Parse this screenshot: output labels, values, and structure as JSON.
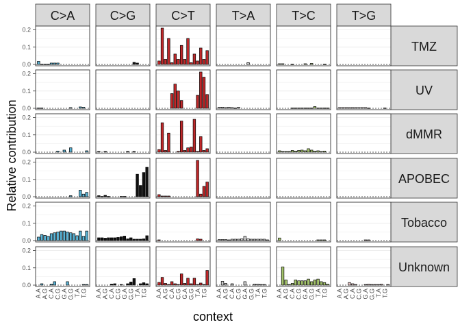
{
  "chart_data": {
    "type": "bar",
    "xlabel": "context",
    "ylabel": "Relative contribution",
    "ylim": [
      0,
      0.21
    ],
    "yticks": [
      "0.0",
      "0.1",
      "0.2"
    ],
    "grid": true,
    "mutation_types": [
      "C>A",
      "C>G",
      "C>T",
      "T>A",
      "T>C",
      "T>G"
    ],
    "signatures": [
      "TMZ",
      "UV",
      "dMMR",
      "APOBEC",
      "Tobacco",
      "Unknown"
    ],
    "context_labels": [
      "A.A",
      "A.G",
      "C.A",
      "C.G",
      "G.A",
      "G.G",
      "T.A",
      "T.G"
    ],
    "colors": {
      "C>A": "#5ab4d6",
      "C>G": "#111111",
      "C>T": "#c0282a",
      "T>A": "#d0d0d0",
      "T>C": "#a3c36a",
      "T>G": "#eac7c6",
      "strip_bg": "#d9d9d9",
      "panel_border": "#333333",
      "grid": "#ebebeb"
    },
    "series": [
      {
        "name": "TMZ",
        "values": {
          "C>A": [
            0.018,
            0.002,
            0.002,
            0.002,
            0.008,
            0.008,
            0.008,
            0,
            0,
            0,
            0,
            0,
            0,
            0,
            0,
            0
          ],
          "C>G": [
            0,
            0,
            0,
            0,
            0,
            0,
            0,
            0,
            0,
            0,
            0,
            0.012,
            0.008,
            0,
            0,
            0
          ],
          "C>T": [
            0.02,
            0.21,
            0.03,
            0.15,
            0.01,
            0.06,
            0.03,
            0.11,
            0.03,
            0.15,
            0.01,
            0.06,
            0.02,
            0.095,
            0.03,
            0.08
          ],
          "T>A": [
            0,
            0,
            0,
            0,
            0,
            0,
            0,
            0,
            0,
            0.01,
            0,
            0,
            0,
            0,
            0,
            0
          ],
          "T>C": [
            0.004,
            0.004,
            0,
            0,
            0.002,
            0,
            0,
            0,
            0.004,
            0,
            0.006,
            0,
            0,
            0,
            0.002,
            0
          ],
          "T>G": [
            0,
            0,
            0,
            0,
            0,
            0,
            0,
            0,
            0,
            0,
            0,
            0,
            0,
            0,
            0,
            0
          ]
        }
      },
      {
        "name": "UV",
        "values": {
          "C>A": [
            0.002,
            0.002,
            0,
            0,
            0,
            0,
            0,
            0,
            0,
            0,
            0.004,
            0,
            0,
            0.008,
            0.006,
            0
          ],
          "C>G": [
            0,
            0,
            0,
            0,
            0,
            0,
            0,
            0,
            0,
            0,
            0,
            0,
            0,
            0,
            0,
            0
          ],
          "C>T": [
            0,
            0,
            0,
            0,
            0.085,
            0.14,
            0.1,
            0.045,
            0,
            0,
            0,
            0,
            0.075,
            0.21,
            0.18,
            0.08
          ],
          "T>A": [
            0.006,
            0.006,
            0.004,
            0.006,
            0.004,
            0.002,
            0.006,
            0,
            0,
            0,
            0,
            0,
            0,
            0,
            0,
            0
          ],
          "T>C": [
            0,
            0,
            0,
            0,
            0.002,
            0.002,
            0.002,
            0.002,
            0.002,
            0.002,
            0.002,
            0.01,
            0.002,
            0.002,
            0.002,
            0.002
          ],
          "T>G": [
            0.004,
            0.004,
            0.004,
            0.004,
            0.004,
            0.004,
            0.004,
            0.004,
            0.004,
            0.002,
            0,
            0,
            0,
            0,
            0.002,
            0
          ]
        }
      },
      {
        "name": "dMMR",
        "values": {
          "C>A": [
            0,
            0,
            0,
            0,
            0,
            0,
            0.006,
            0,
            0.012,
            0,
            0.025,
            0,
            0,
            0,
            0,
            0.008
          ],
          "C>G": [
            0.004,
            0,
            0.004,
            0,
            0,
            0,
            0,
            0,
            0,
            0.004,
            0,
            0.004,
            0,
            0,
            0,
            0
          ],
          "C>T": [
            0.015,
            0.17,
            0.01,
            0.11,
            0,
            0,
            0.005,
            0.18,
            0.01,
            0.025,
            0.03,
            0.19,
            0.005,
            0.09,
            0.01,
            0.02
          ],
          "T>A": [
            0,
            0,
            0,
            0,
            0,
            0,
            0,
            0,
            0,
            0,
            0,
            0,
            0,
            0,
            0,
            0
          ],
          "T>C": [
            0.008,
            0.004,
            0.004,
            0.004,
            0.01,
            0.006,
            0.01,
            0.012,
            0.008,
            0.02,
            0.012,
            0.006,
            0.008,
            0.004,
            0.006,
            0
          ],
          "T>G": [
            0,
            0,
            0,
            0,
            0,
            0,
            0,
            0,
            0,
            0,
            0,
            0,
            0,
            0,
            0,
            0
          ]
        }
      },
      {
        "name": "APOBEC",
        "values": {
          "C>A": [
            0,
            0,
            0,
            0,
            0,
            0,
            0,
            0,
            0,
            0,
            0.006,
            0,
            0,
            0.038,
            0.015,
            0.025
          ],
          "C>G": [
            0.006,
            0.002,
            0.008,
            0.002,
            0,
            0,
            0,
            0.002,
            0.002,
            0,
            0,
            0,
            0.13,
            0.065,
            0.14,
            0.17
          ],
          "C>T": [
            0.012,
            0.004,
            0.004,
            0.004,
            0,
            0,
            0,
            0,
            0,
            0,
            0,
            0,
            0.21,
            0.015,
            0.06,
            0.085
          ],
          "T>A": [
            0,
            0,
            0,
            0,
            0,
            0,
            0,
            0,
            0,
            0,
            0,
            0,
            0,
            0,
            0,
            0
          ],
          "T>C": [
            0,
            0,
            0,
            0,
            0,
            0,
            0,
            0,
            0,
            0,
            0,
            0,
            0,
            0,
            0,
            0
          ],
          "T>G": [
            0,
            0,
            0,
            0,
            0,
            0,
            0,
            0,
            0,
            0,
            0,
            0,
            0,
            0,
            0,
            0
          ]
        }
      },
      {
        "name": "Tobacco",
        "values": {
          "C>A": [
            0.02,
            0.035,
            0.03,
            0.025,
            0.04,
            0.045,
            0.05,
            0.055,
            0.055,
            0.05,
            0.045,
            0.04,
            0.028,
            0.055,
            0.025,
            0.055
          ],
          "C>G": [
            0.016,
            0.016,
            0.014,
            0.016,
            0.016,
            0.016,
            0.018,
            0.022,
            0.026,
            0.01,
            0.016,
            0.008,
            0.008,
            0.008,
            0.01,
            0.028
          ],
          "C>T": [
            0.004,
            0,
            0,
            0,
            0,
            0,
            0,
            0,
            0,
            0,
            0,
            0,
            0.01,
            0.008,
            0,
            0
          ],
          "T>A": [
            0.006,
            0.006,
            0.006,
            0.004,
            0.008,
            0.008,
            0.008,
            0.01,
            0.025,
            0.01,
            0.008,
            0.008,
            0.008,
            0.008,
            0.008,
            0.004
          ],
          "T>C": [
            0.015,
            0,
            0,
            0,
            0,
            0,
            0,
            0,
            0,
            0,
            0,
            0,
            0.004,
            0.004,
            0.004,
            0
          ],
          "T>G": [
            0,
            0,
            0,
            0,
            0,
            0,
            0,
            0,
            0.004,
            0.004,
            0,
            0,
            0,
            0,
            0,
            0
          ]
        }
      },
      {
        "name": "Unknown",
        "values": {
          "C>A": [
            0,
            0.008,
            0,
            0,
            0.006,
            0.02,
            0,
            0,
            0,
            0.02,
            0,
            0,
            0,
            0,
            0.004,
            0.004
          ],
          "C>G": [
            0,
            0,
            0,
            0,
            0.006,
            0.008,
            0,
            0.004,
            0,
            0.008,
            0.018,
            0.038,
            0,
            0.008,
            0.014,
            0.008
          ],
          "C>T": [
            0.016,
            0.045,
            0.01,
            0.004,
            0.02,
            0.008,
            0.004,
            0.065,
            0.01,
            0.04,
            0.008,
            0.04,
            0.004,
            0.012,
            0.004,
            0.085
          ],
          "T>A": [
            0,
            0.022,
            0.01,
            0,
            0.008,
            0,
            0,
            0,
            0.02,
            0,
            0,
            0.006,
            0.006,
            0.004,
            0.004,
            0
          ],
          "T>C": [
            0,
            0.105,
            0.03,
            0.004,
            0.01,
            0.03,
            0.025,
            0.025,
            0.025,
            0.035,
            0.02,
            0.03,
            0.035,
            0.02,
            0.015,
            0.006
          ],
          "T>G": [
            0,
            0,
            0,
            0.015,
            0.008,
            0.004,
            0,
            0,
            0.004,
            0.006,
            0.004,
            0.004,
            0.004,
            0.006,
            0,
            0.004
          ]
        }
      }
    ]
  }
}
